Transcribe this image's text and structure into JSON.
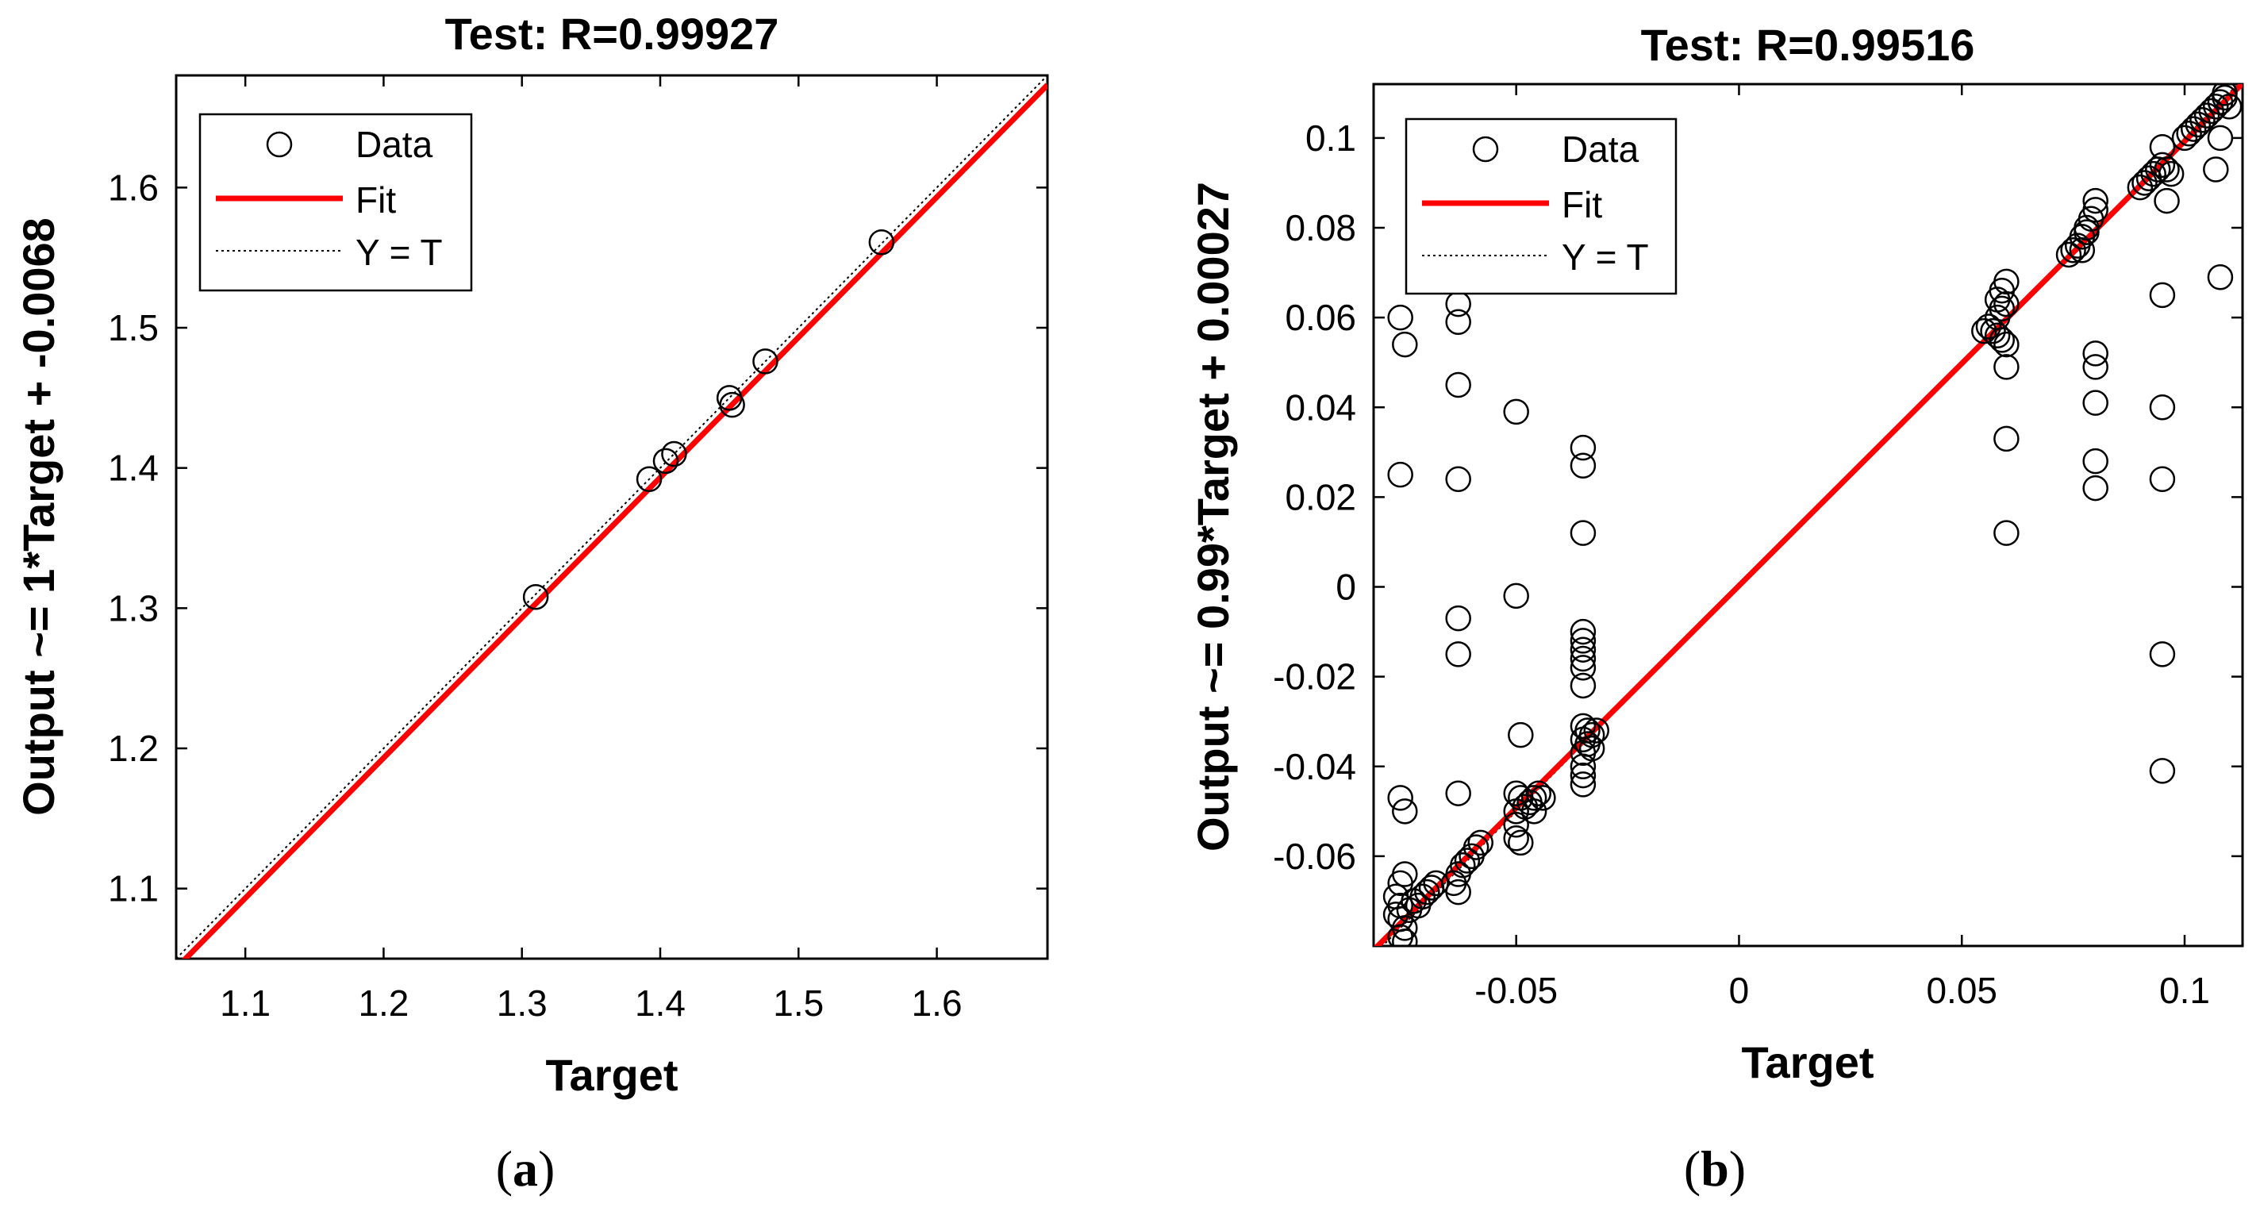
{
  "figure": {
    "caption_a": "a",
    "caption_b": "b"
  },
  "chart_data": [
    {
      "type": "scatter",
      "panel": "a",
      "title": "Test: R=0.99927",
      "xlabel": "Target",
      "ylabel": "Output ~= 1*Target + -0.0068",
      "xlim": [
        1.05,
        1.68
      ],
      "ylim": [
        1.05,
        1.68
      ],
      "xticks": [
        1.1,
        1.2,
        1.3,
        1.4,
        1.5,
        1.6
      ],
      "xtick_labels": [
        "1.1",
        "1.2",
        "1.3",
        "1.4",
        "1.5",
        "1.6"
      ],
      "yticks": [
        1.1,
        1.2,
        1.3,
        1.4,
        1.5,
        1.6
      ],
      "ytick_labels": [
        "1.1",
        "1.2",
        "1.3",
        "1.4",
        "1.5",
        "1.6"
      ],
      "grid": false,
      "legend": {
        "position": "top-left",
        "entries": [
          "Data",
          "Fit",
          "Y = T"
        ]
      },
      "fit": {
        "slope": 1,
        "intercept": -0.0068,
        "color": "#ff0000"
      },
      "identity_line_color": "#000000",
      "series": [
        {
          "name": "Data",
          "marker": "open-circle",
          "points": [
            [
              1.31,
              1.308
            ],
            [
              1.392,
              1.392
            ],
            [
              1.404,
              1.405
            ],
            [
              1.41,
              1.41
            ],
            [
              1.45,
              1.45
            ],
            [
              1.452,
              1.445
            ],
            [
              1.476,
              1.476
            ],
            [
              1.56,
              1.561
            ]
          ]
        }
      ]
    },
    {
      "type": "scatter",
      "panel": "b",
      "title": "Test: R=0.99516",
      "xlabel": "Target",
      "ylabel": "Output ~= 0.99*Target + 0.00027",
      "xlim": [
        -0.082,
        0.113
      ],
      "ylim": [
        -0.08,
        0.112
      ],
      "xticks": [
        -0.05,
        0,
        0.05,
        0.1
      ],
      "xtick_labels": [
        "-0.05",
        "0",
        "0.05",
        "0.1"
      ],
      "yticks": [
        -0.06,
        -0.04,
        -0.02,
        0,
        0.02,
        0.04,
        0.06,
        0.08,
        0.1
      ],
      "ytick_labels": [
        "-0.06",
        "-0.04",
        "-0.02",
        "0",
        "0.02",
        "0.04",
        "0.06",
        "0.08",
        "0.1"
      ],
      "grid": false,
      "legend": {
        "position": "top-left",
        "entries": [
          "Data",
          "Fit",
          "Y = T"
        ]
      },
      "fit": {
        "slope": 0.99,
        "intercept": 0.00027,
        "color": "#ff0000"
      },
      "identity_line_color": "#000000",
      "series": [
        {
          "name": "Data",
          "marker": "open-circle",
          "points": [
            [
              -0.076,
              0.06
            ],
            [
              -0.075,
              0.054
            ],
            [
              -0.076,
              0.025
            ],
            [
              -0.076,
              -0.047
            ],
            [
              -0.075,
              -0.05
            ],
            [
              -0.075,
              -0.064
            ],
            [
              -0.076,
              -0.066
            ],
            [
              -0.077,
              -0.069
            ],
            [
              -0.076,
              -0.071
            ],
            [
              -0.077,
              -0.073
            ],
            [
              -0.076,
              -0.074
            ],
            [
              -0.075,
              -0.076
            ],
            [
              -0.076,
              -0.078
            ],
            [
              -0.075,
              -0.079
            ],
            [
              -0.074,
              -0.072
            ],
            [
              -0.073,
              -0.07
            ],
            [
              -0.072,
              -0.071
            ],
            [
              -0.071,
              -0.069
            ],
            [
              -0.07,
              -0.068
            ],
            [
              -0.069,
              -0.067
            ],
            [
              -0.068,
              -0.066
            ],
            [
              -0.063,
              0.063
            ],
            [
              -0.063,
              0.059
            ],
            [
              -0.063,
              0.045
            ],
            [
              -0.063,
              0.024
            ],
            [
              -0.063,
              -0.007
            ],
            [
              -0.063,
              -0.015
            ],
            [
              -0.063,
              -0.046
            ],
            [
              -0.063,
              -0.068
            ],
            [
              -0.064,
              -0.066
            ],
            [
              -0.063,
              -0.064
            ],
            [
              -0.062,
              -0.062
            ],
            [
              -0.061,
              -0.061
            ],
            [
              -0.06,
              -0.06
            ],
            [
              -0.059,
              -0.058
            ],
            [
              -0.058,
              -0.057
            ],
            [
              -0.05,
              0.039
            ],
            [
              -0.05,
              -0.002
            ],
            [
              -0.049,
              -0.033
            ],
            [
              -0.05,
              -0.046
            ],
            [
              -0.05,
              -0.05
            ],
            [
              -0.05,
              -0.053
            ],
            [
              -0.05,
              -0.056
            ],
            [
              -0.049,
              -0.057
            ],
            [
              -0.049,
              -0.047
            ],
            [
              -0.048,
              -0.049
            ],
            [
              -0.047,
              -0.048
            ],
            [
              -0.046,
              -0.047
            ],
            [
              -0.045,
              -0.046
            ],
            [
              -0.044,
              -0.047
            ],
            [
              -0.046,
              -0.05
            ],
            [
              -0.035,
              0.031
            ],
            [
              -0.035,
              0.027
            ],
            [
              -0.035,
              0.012
            ],
            [
              -0.035,
              -0.01
            ],
            [
              -0.035,
              -0.012
            ],
            [
              -0.035,
              -0.014
            ],
            [
              -0.035,
              -0.016
            ],
            [
              -0.035,
              -0.018
            ],
            [
              -0.035,
              -0.022
            ],
            [
              -0.035,
              -0.031
            ],
            [
              -0.035,
              -0.034
            ],
            [
              -0.035,
              -0.037
            ],
            [
              -0.035,
              -0.04
            ],
            [
              -0.035,
              -0.042
            ],
            [
              -0.035,
              -0.044
            ],
            [
              -0.034,
              -0.032
            ],
            [
              -0.033,
              -0.033
            ],
            [
              -0.032,
              -0.032
            ],
            [
              -0.034,
              -0.035
            ],
            [
              -0.033,
              -0.036
            ],
            [
              0.055,
              0.057
            ],
            [
              0.056,
              0.058
            ],
            [
              0.057,
              0.057
            ],
            [
              0.058,
              0.056
            ],
            [
              0.059,
              0.055
            ],
            [
              0.058,
              0.06
            ],
            [
              0.059,
              0.062
            ],
            [
              0.058,
              0.064
            ],
            [
              0.059,
              0.066
            ],
            [
              0.06,
              0.068
            ],
            [
              0.06,
              0.063
            ],
            [
              0.06,
              0.054
            ],
            [
              0.06,
              0.049
            ],
            [
              0.06,
              0.033
            ],
            [
              0.06,
              0.012
            ],
            [
              0.074,
              0.074
            ],
            [
              0.075,
              0.075
            ],
            [
              0.076,
              0.076
            ],
            [
              0.077,
              0.078
            ],
            [
              0.078,
              0.08
            ],
            [
              0.079,
              0.082
            ],
            [
              0.08,
              0.084
            ],
            [
              0.08,
              0.086
            ],
            [
              0.08,
              0.052
            ],
            [
              0.08,
              0.049
            ],
            [
              0.08,
              0.041
            ],
            [
              0.08,
              0.028
            ],
            [
              0.08,
              0.022
            ],
            [
              0.078,
              0.079
            ],
            [
              0.077,
              0.075
            ],
            [
              0.09,
              0.089
            ],
            [
              0.091,
              0.09
            ],
            [
              0.092,
              0.091
            ],
            [
              0.093,
              0.092
            ],
            [
              0.094,
              0.093
            ],
            [
              0.095,
              0.094
            ],
            [
              0.095,
              0.098
            ],
            [
              0.096,
              0.086
            ],
            [
              0.095,
              0.065
            ],
            [
              0.095,
              0.04
            ],
            [
              0.095,
              0.024
            ],
            [
              0.095,
              -0.015
            ],
            [
              0.095,
              -0.041
            ],
            [
              0.096,
              0.093
            ],
            [
              0.097,
              0.092
            ],
            [
              0.1,
              0.1
            ],
            [
              0.101,
              0.101
            ],
            [
              0.102,
              0.102
            ],
            [
              0.103,
              0.103
            ],
            [
              0.104,
              0.104
            ],
            [
              0.105,
              0.105
            ],
            [
              0.106,
              0.106
            ],
            [
              0.107,
              0.107
            ],
            [
              0.108,
              0.108
            ],
            [
              0.109,
              0.109
            ],
            [
              0.109,
              0.11
            ],
            [
              0.108,
              0.1
            ],
            [
              0.107,
              0.093
            ],
            [
              0.108,
              0.069
            ],
            [
              0.11,
              0.107
            ]
          ]
        }
      ]
    }
  ]
}
